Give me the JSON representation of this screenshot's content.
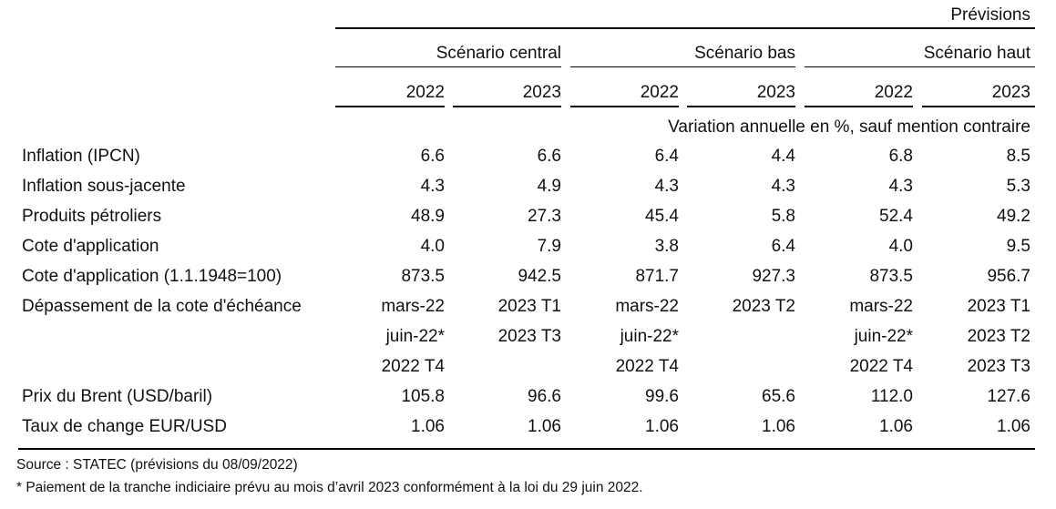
{
  "header": {
    "previsions": "Prévisions",
    "scenarios": [
      "Scénario central",
      "Scénario bas",
      "Scénario haut"
    ],
    "years": [
      "2022",
      "2023",
      "2022",
      "2023",
      "2022",
      "2023"
    ],
    "unit_note": "Variation annuelle en %, sauf mention contraire"
  },
  "rows": [
    {
      "label": "Inflation (IPCN)",
      "values": [
        "6.6",
        "6.6",
        "6.4",
        "4.4",
        "6.8",
        "8.5"
      ]
    },
    {
      "label": "Inflation sous-jacente",
      "values": [
        "4.3",
        "4.9",
        "4.3",
        "4.3",
        "4.3",
        "5.3"
      ]
    },
    {
      "label": "Produits pétroliers",
      "values": [
        "48.9",
        "27.3",
        "45.4",
        "5.8",
        "52.4",
        "49.2"
      ]
    },
    {
      "label": "Cote d'application",
      "values": [
        "4.0",
        "7.9",
        "3.8",
        "6.4",
        "4.0",
        "9.5"
      ]
    },
    {
      "label": "Cote d'application (1.1.1948=100)",
      "values": [
        "873.5",
        "942.5",
        "871.7",
        "927.3",
        "873.5",
        "956.7"
      ]
    },
    {
      "label": "Dépassement de la cote d'échéance",
      "values": [
        "mars-22",
        "2023 T1",
        "mars-22",
        "2023 T2",
        "mars-22",
        "2023 T1"
      ]
    },
    {
      "label": "",
      "values": [
        "juin-22*",
        "2023 T3",
        "juin-22*",
        "",
        "juin-22*",
        "2023 T2"
      ]
    },
    {
      "label": "",
      "values": [
        "2022 T4",
        "",
        "2022 T4",
        "",
        "2022 T4",
        "2023 T3"
      ]
    },
    {
      "label": "Prix du Brent (USD/baril)",
      "values": [
        "105.8",
        "96.6",
        "99.6",
        "65.6",
        "112.0",
        "127.6"
      ]
    },
    {
      "label": "Taux de change EUR/USD",
      "values": [
        "1.06",
        "1.06",
        "1.06",
        "1.06",
        "1.06",
        "1.06"
      ]
    }
  ],
  "footer": {
    "source": "Source : STATEC (prévisions du 08/09/2022)",
    "footnote": "* Paiement de la tranche indiciaire prévu au mois d’avril 2023 conformément à la loi du 29 juin 2022."
  }
}
